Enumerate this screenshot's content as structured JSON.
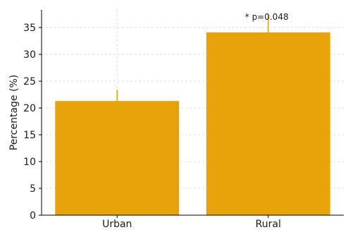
{
  "chart_data": {
    "type": "bar",
    "categories": [
      "Urban",
      "Rural"
    ],
    "values": [
      21.3,
      34.1
    ],
    "error_upper": [
      23.4,
      37.4
    ],
    "ylabel": "Percentage (%)",
    "xlabel": "",
    "ylim": [
      0,
      38.3
    ],
    "yticks": [
      0,
      5,
      10,
      15,
      20,
      25,
      30,
      35
    ],
    "grid": true,
    "bar_color": "#E8A30B",
    "error_color": "#E8A30B",
    "annotations": [
      {
        "text": "* p=0.048",
        "category": "Rural"
      }
    ]
  }
}
